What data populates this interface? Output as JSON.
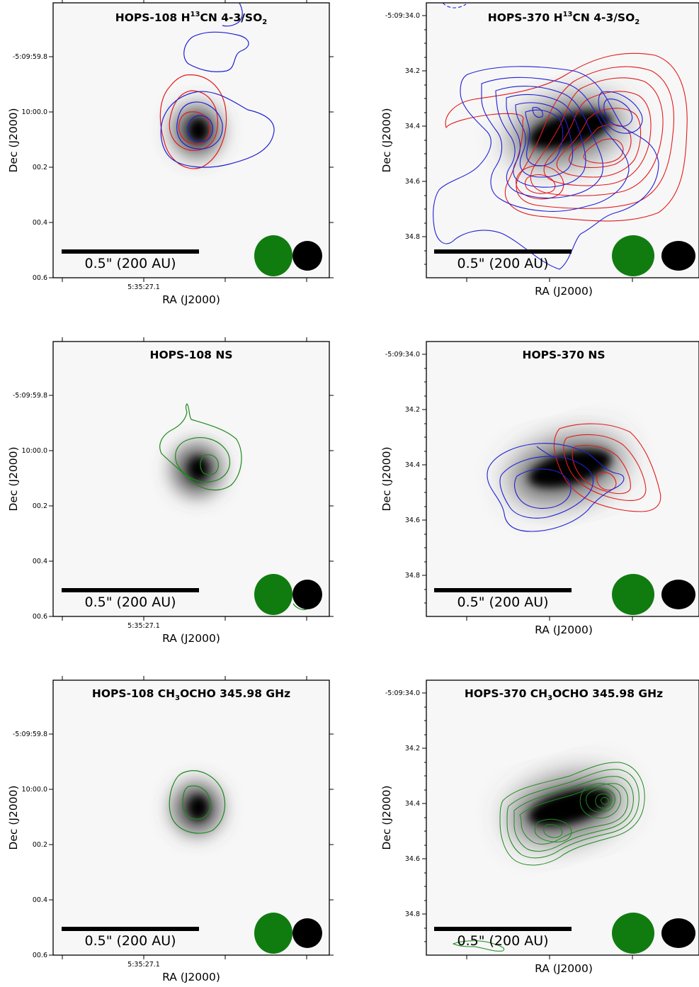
{
  "figure": {
    "axis_labels": {
      "x": "RA (J2000)",
      "y": "Dec (J2000)"
    },
    "scalebar_label": "0.5\" (200 AU)",
    "colors": {
      "redshifted": "#e31a1c",
      "blueshifted": "#1f1fd6",
      "emission": "#1a8a1a",
      "beam_line": "#107c10",
      "beam_continuum": "#000000"
    },
    "left_column": {
      "source": "HOPS-108",
      "y_ticks": [
        "-5:09:59.8",
        "10:00.0",
        "00.2",
        "00.4",
        "00.6"
      ],
      "x_tick": "5:35:27.1"
    },
    "right_column": {
      "source": "HOPS-370",
      "y_ticks": [
        "-5:09:34.0",
        "34.2",
        "34.4",
        "34.6",
        "34.8"
      ]
    },
    "panels": [
      {
        "title": "HOPS-108 H<sup>13</sup>CN 4-3/SO<sub>2</sub>",
        "line": "H13CN 4-3/SO2",
        "contours": [
          "red",
          "blue"
        ]
      },
      {
        "title": "HOPS-370 H<sup>13</sup>CN 4-3/SO<sub>2</sub>",
        "line": "H13CN 4-3/SO2",
        "contours": [
          "red",
          "blue"
        ]
      },
      {
        "title": "HOPS-108 NS",
        "line": "NS",
        "contours": [
          "green"
        ]
      },
      {
        "title": "HOPS-370 NS",
        "line": "NS",
        "contours": [
          "red",
          "blue"
        ]
      },
      {
        "title": "HOPS-108 CH<sub>3</sub>OCHO 345.98 GHz",
        "line": "CH3OCHO 345.98 GHz",
        "contours": [
          "green"
        ]
      },
      {
        "title": "HOPS-370 CH<sub>3</sub>OCHO 345.98 GHz",
        "line": "CH3OCHO 345.98 GHz",
        "contours": [
          "green"
        ]
      }
    ]
  }
}
